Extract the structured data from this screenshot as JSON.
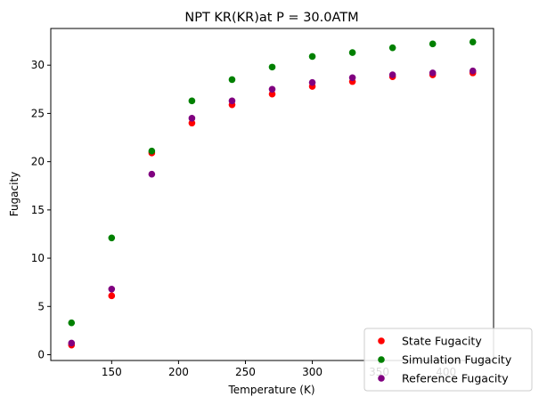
{
  "chart_data": {
    "type": "scatter",
    "title": "NPT KR(KR)at P = 30.0ATM",
    "xlabel": "Temperature (K)",
    "ylabel": "Fugacity",
    "xlim": [
      104.5,
      435.5
    ],
    "ylim": [
      -0.6,
      33.8
    ],
    "xticks": [
      150,
      200,
      250,
      300,
      350,
      400
    ],
    "yticks": [
      0,
      5,
      10,
      15,
      20,
      25,
      30
    ],
    "grid": false,
    "legend_position": "lower-right",
    "series": [
      {
        "name": "State Fugacity",
        "color": "#ff0000",
        "x": [
          120,
          150,
          180,
          210,
          240,
          270,
          300,
          330,
          360,
          390,
          420
        ],
        "y": [
          1.0,
          6.1,
          20.9,
          24.0,
          25.9,
          27.0,
          27.8,
          28.3,
          28.8,
          29.0,
          29.2
        ]
      },
      {
        "name": "Simulation Fugacity",
        "color": "#008000",
        "x": [
          120,
          150,
          180,
          210,
          240,
          270,
          300,
          330,
          360,
          390,
          420
        ],
        "y": [
          3.3,
          12.1,
          21.1,
          26.3,
          28.5,
          29.8,
          30.9,
          31.3,
          31.8,
          32.2,
          32.4
        ]
      },
      {
        "name": "Reference Fugacity",
        "color": "#800080",
        "x": [
          120,
          150,
          180,
          210,
          240,
          270,
          300,
          330,
          360,
          390,
          420
        ],
        "y": [
          1.2,
          6.8,
          18.7,
          24.5,
          26.3,
          27.5,
          28.2,
          28.7,
          29.0,
          29.2,
          29.4
        ]
      }
    ]
  }
}
